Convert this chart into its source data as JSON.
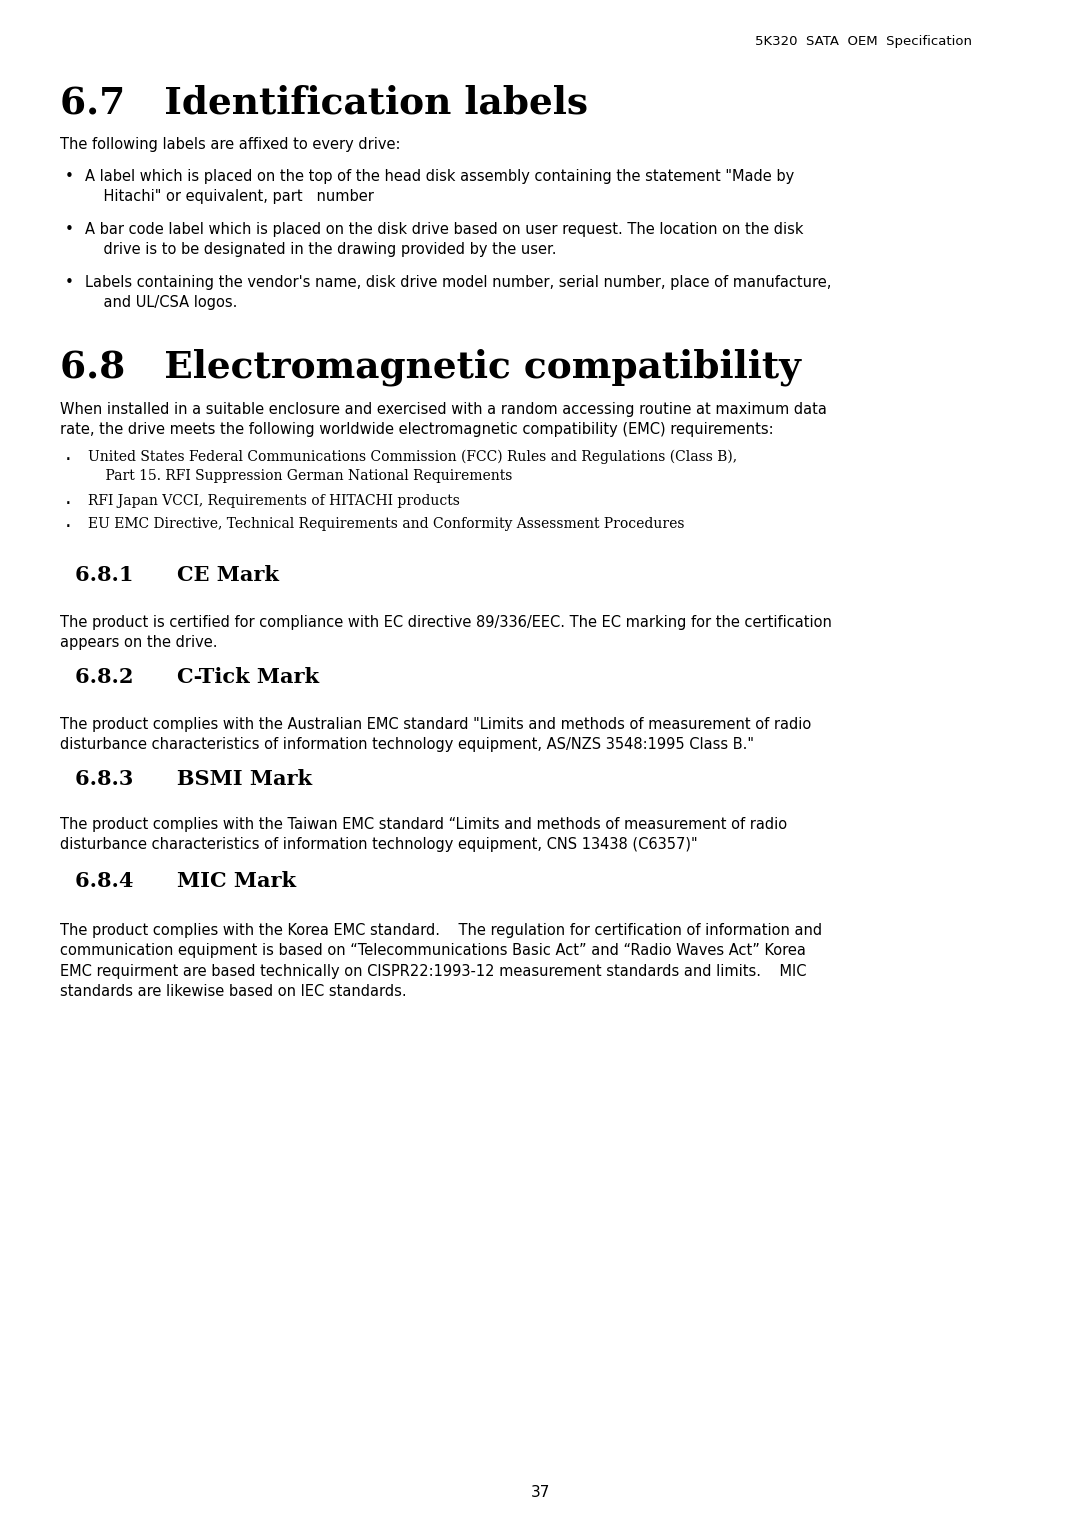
{
  "bg_color": "#ffffff",
  "header_text": "5K320  SATA  OEM  Specification",
  "section_67_title": "6.7   Identification labels",
  "section_67_intro": "The following labels are affixed to every drive:",
  "section_68_title": "6.8   Electromagnetic compatibility",
  "section_68_intro": "When installed in a suitable enclosure and exercised with a random accessing routine at maximum data\nrate, the drive meets the following worldwide electromagnetic compatibility (EMC) requirements:",
  "section_681_title": "6.8.1      CE Mark",
  "section_681_body": "The product is certified for compliance with EC directive 89/336/EEC. The EC marking for the certification\nappears on the drive.",
  "section_682_title": "6.8.2      C-Tick Mark",
  "section_682_body": "The product complies with the Australian EMC standard \"Limits and methods of measurement of radio\ndisturbance characteristics of information technology equipment, AS/NZS 3548:1995 Class B.\"",
  "section_683_title": "6.8.3      BSMI Mark",
  "section_683_body": "The product complies with the Taiwan EMC standard “Limits and methods of measurement of radio\ndisturbance characteristics of information technology equipment, CNS 13438 (C6357)\"",
  "section_684_title": "6.8.4      MIC Mark",
  "section_684_body": "The product complies with the Korea EMC standard.    The regulation for certification of information and\ncommunication equipment is based on “Telecommunications Basic Act” and “Radio Waves Act” Korea\nEMC requirment are based technically on CISPR22:1993-12 measurement standards and limits.    MIC\nstandards are likewise based on IEC standards.",
  "page_number": "37",
  "bullet_67": [
    "A label which is placed on the top of the head disk assembly containing the statement \"Made by\n    Hitachi\" or equivalent, part   number",
    "A bar code label which is placed on the disk drive based on user request. The location on the disk\n    drive is to be designated in the drawing provided by the user.",
    "Labels containing the vendor's name, disk drive model number, serial number, place of manufacture,\n    and UL/CSA logos."
  ],
  "bullet_68": [
    "United States Federal Communications Commission (FCC) Rules and Regulations (Class B),\n    Part 15. RFI Suppression German National Requirements",
    "RFI Japan VCCI, Requirements of HITACHI products",
    "EU EMC Directive, Technical Requirements and Conformity Assessment Procedures"
  ]
}
